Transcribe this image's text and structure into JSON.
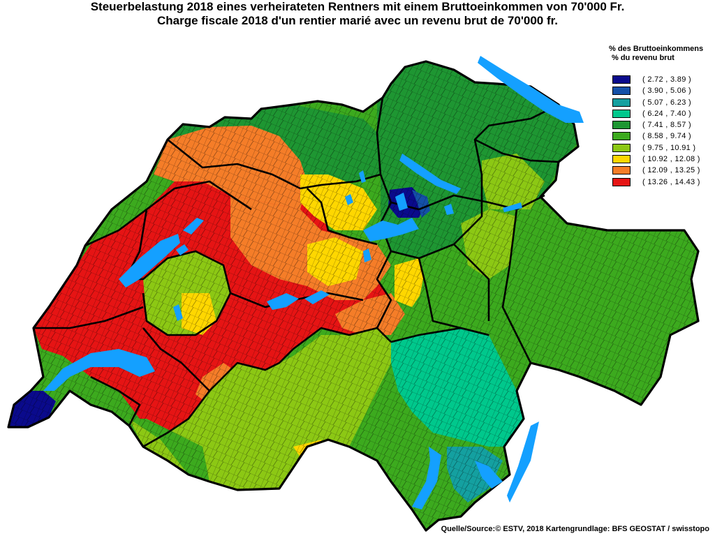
{
  "title": {
    "line1": "Steuerbelastung 2018 eines verheirateten Rentners mit einem Bruttoeinkommen von 70'000 Fr.",
    "line2": "Charge fiscale 2018 d'un rentier marié avec un revenu brut de 70'000 fr."
  },
  "legend": {
    "heading_de": "% des Bruttoeinkommens",
    "heading_fr": "% du revenu brut",
    "classes": [
      {
        "label": "( 2.72 , 3.89 )",
        "color": "#0a0a8c"
      },
      {
        "label": "( 3.90 , 5.06 )",
        "color": "#1450a8"
      },
      {
        "label": "( 5.07 , 6.23 )",
        "color": "#14a0a0"
      },
      {
        "label": "( 6.24 , 7.40 )",
        "color": "#00c88c"
      },
      {
        "label": "( 7.41 , 8.57 )",
        "color": "#1e9632"
      },
      {
        "label": "( 8.58 , 9.74 )",
        "color": "#3caa1e"
      },
      {
        "label": "( 9.75 , 10.91 )",
        "color": "#8cc814"
      },
      {
        "label": "( 10.92 , 12.08 )",
        "color": "#ffd700"
      },
      {
        "label": "( 12.09 , 13.25 )",
        "color": "#f57d28"
      },
      {
        "label": "( 13.26 , 14.43 )",
        "color": "#e61414"
      }
    ]
  },
  "colors": {
    "water": "#14a0ff",
    "canton_border": "#000000"
  },
  "source": "Quelle/Source:© ESTV, 2018 Kartengrundlage: BFS GEOSTAT / swisstopo"
}
